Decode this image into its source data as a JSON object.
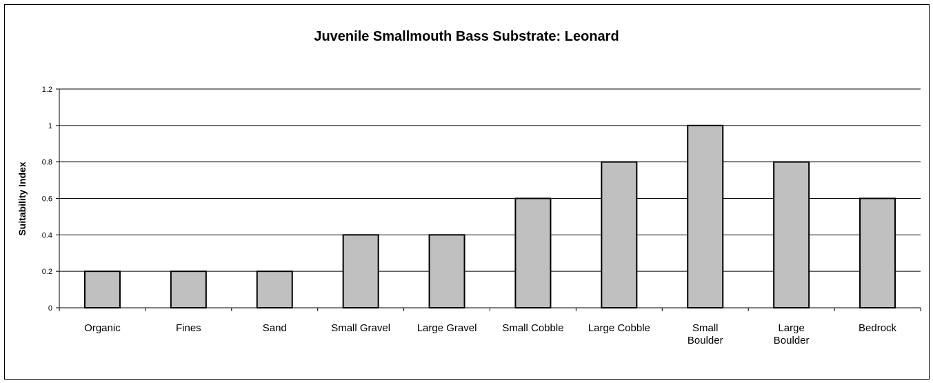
{
  "chart_data": {
    "type": "bar",
    "title": "Juvenile Smallmouth Bass Substrate: Leonard",
    "xlabel": "",
    "ylabel": "Suitability Index",
    "categories": [
      "Organic",
      "Fines",
      "Sand",
      "Small Gravel",
      "Large Gravel",
      "Small Cobble",
      "Large Cobble",
      "Small Boulder",
      "Large Boulder",
      "Bedrock"
    ],
    "category_lines": [
      [
        "Organic"
      ],
      [
        "Fines"
      ],
      [
        "Sand"
      ],
      [
        "Small Gravel"
      ],
      [
        "Large Gravel"
      ],
      [
        "Small Cobble"
      ],
      [
        "Large Cobble"
      ],
      [
        "Small",
        "Boulder"
      ],
      [
        "Large",
        "Boulder"
      ],
      [
        "Bedrock"
      ]
    ],
    "values": [
      0.2,
      0.2,
      0.2,
      0.4,
      0.4,
      0.6,
      0.8,
      1.0,
      0.8,
      0.6
    ],
    "ylim": [
      0,
      1.2
    ],
    "yticks": [
      "0",
      "0.2",
      "0.4",
      "0.6",
      "0.8",
      "1",
      "1.2"
    ],
    "grid": true,
    "legend": "none",
    "bar_color": "#c0c0c0"
  }
}
